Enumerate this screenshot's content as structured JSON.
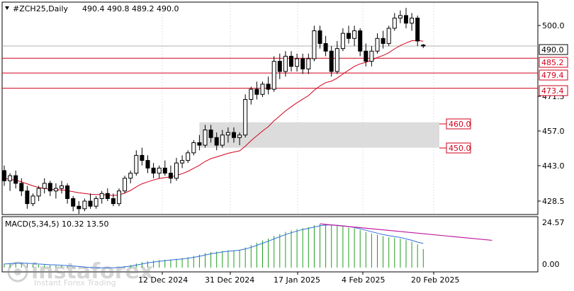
{
  "header": {
    "symbol": "#ZCH25,Daily",
    "ohlc": "490.4 490.8 489.2 490.0"
  },
  "price_axis": {
    "ticks": [
      "500.0",
      "471.5",
      "457.0",
      "443.0",
      "428.5"
    ],
    "current_price": "490.0",
    "level_labels": [
      "485.2",
      "479.4",
      "473.4"
    ],
    "zone_labels": [
      "460.0",
      "450.0"
    ]
  },
  "macd_axis": {
    "ticks": [
      "24.57",
      "0.00"
    ]
  },
  "date_axis": {
    "labels": [
      "12 Dec 2024",
      "31 Dec 2024",
      "17 Jan 2025",
      "4 Feb 2025",
      "20 Feb 2025"
    ]
  },
  "watermark": {
    "brand": "instaforex",
    "tagline": "Instant Forex Trading"
  },
  "colors": {
    "bull_body": "#ffffff",
    "bear_body": "#000000",
    "ma_line": "#d0021b",
    "levels": "#d0021b",
    "zone": "#d8d8d8",
    "macd_hist": "#1e9e1e",
    "macd_signal": "#2f6fde",
    "divergence": "#c01fa0"
  },
  "chart_data": [
    {
      "type": "candlestick",
      "title": "#ZCH25,Daily",
      "ylim": [
        424.0,
        507.0
      ],
      "x_labels": [
        "12 Dec 2024",
        "31 Dec 2024",
        "17 Jan 2025",
        "4 Feb 2025",
        "20 Feb 2025"
      ],
      "candles": [
        [
          441,
          443,
          435,
          437
        ],
        [
          437,
          440,
          433,
          439
        ],
        [
          439,
          441,
          434,
          436
        ],
        [
          436,
          438,
          431,
          433
        ],
        [
          433,
          435,
          426,
          428
        ],
        [
          428,
          432,
          427,
          431
        ],
        [
          431,
          435,
          429,
          434
        ],
        [
          434,
          438,
          432,
          436
        ],
        [
          436,
          437,
          431,
          433
        ],
        [
          433,
          436,
          430,
          434
        ],
        [
          434,
          437,
          432,
          435
        ],
        [
          435,
          436,
          428,
          430
        ],
        [
          430,
          431,
          425,
          427
        ],
        [
          427,
          429,
          424,
          426
        ],
        [
          426,
          430,
          425,
          429
        ],
        [
          429,
          432,
          426,
          427
        ],
        [
          427,
          431,
          426,
          430
        ],
        [
          430,
          433,
          428,
          432
        ],
        [
          432,
          434,
          429,
          430
        ],
        [
          430,
          432,
          427,
          428
        ],
        [
          428,
          434,
          427,
          433
        ],
        [
          433,
          439,
          432,
          438
        ],
        [
          438,
          441,
          436,
          440
        ],
        [
          440,
          449,
          439,
          447
        ],
        [
          447,
          450,
          443,
          445
        ],
        [
          445,
          447,
          440,
          442
        ],
        [
          442,
          444,
          438,
          440
        ],
        [
          440,
          443,
          438,
          442
        ],
        [
          442,
          445,
          439,
          440
        ],
        [
          440,
          443,
          436,
          438
        ],
        [
          438,
          446,
          437,
          444
        ],
        [
          444,
          447,
          442,
          445
        ],
        [
          445,
          449,
          444,
          448
        ],
        [
          448,
          453,
          447,
          452
        ],
        [
          452,
          455,
          449,
          451
        ],
        [
          451,
          459,
          450,
          457
        ],
        [
          457,
          459,
          452,
          454
        ],
        [
          454,
          456,
          449,
          451
        ],
        [
          451,
          457,
          450,
          455
        ],
        [
          455,
          458,
          452,
          456
        ],
        [
          456,
          458,
          452,
          454
        ],
        [
          454,
          456,
          451,
          455
        ],
        [
          455,
          471,
          454,
          469
        ],
        [
          469,
          474,
          467,
          473
        ],
        [
          473,
          476,
          469,
          471
        ],
        [
          471,
          476,
          470,
          475
        ],
        [
          475,
          478,
          471,
          473
        ],
        [
          473,
          486,
          472,
          484
        ],
        [
          484,
          487,
          477,
          480
        ],
        [
          480,
          488,
          478,
          486
        ],
        [
          486,
          488,
          480,
          482
        ],
        [
          482,
          487,
          480,
          485
        ],
        [
          485,
          487,
          479,
          481
        ],
        [
          481,
          487,
          479,
          485
        ],
        [
          485,
          498,
          484,
          496
        ],
        [
          496,
          498,
          489,
          491
        ],
        [
          491,
          494,
          486,
          488
        ],
        [
          488,
          490,
          478,
          480
        ],
        [
          480,
          492,
          479,
          489
        ],
        [
          489,
          497,
          488,
          495
        ],
        [
          495,
          498,
          491,
          493
        ],
        [
          493,
          498,
          490,
          496
        ],
        [
          496,
          497,
          486,
          488
        ],
        [
          488,
          491,
          482,
          484
        ],
        [
          484,
          490,
          482,
          488
        ],
        [
          488,
          495,
          487,
          493
        ],
        [
          493,
          496,
          489,
          491
        ],
        [
          491,
          498,
          490,
          497
        ],
        [
          497,
          503,
          496,
          501
        ],
        [
          501,
          504,
          499,
          502
        ],
        [
          502,
          505,
          497,
          499
        ],
        [
          499,
          503,
          496,
          501
        ],
        [
          501,
          502,
          490,
          492
        ],
        [
          490.4,
          490.8,
          489.2,
          490.0
        ]
      ],
      "moving_average": [
        438,
        437.6,
        437.2,
        436.6,
        435.8,
        435,
        434.4,
        434,
        433.7,
        433.5,
        433.4,
        433.1,
        432.7,
        432.3,
        432,
        431.7,
        431.6,
        431.6,
        431.4,
        431.2,
        431.4,
        432.2,
        433.2,
        434.6,
        435.8,
        436.6,
        437.3,
        437.9,
        438.3,
        438.5,
        439.1,
        439.8,
        440.7,
        441.9,
        443.1,
        444.6,
        445.7,
        446.4,
        447.1,
        447.8,
        448.3,
        448.8,
        450.6,
        452.8,
        454.7,
        456.6,
        458.3,
        460.6,
        462.5,
        464.5,
        466.1,
        467.7,
        469.1,
        470.5,
        472.6,
        474.3,
        475.6,
        476.2,
        477.4,
        479,
        480.5,
        482,
        483,
        483.6,
        484.4,
        485.5,
        486.3,
        487.4,
        488.9,
        490.2,
        491.2,
        492.1,
        492.2,
        491.9
      ],
      "levels": [
        485.2,
        479.4,
        473.4
      ],
      "zone": [
        450.0,
        460.0
      ]
    },
    {
      "type": "bar",
      "title": "MACD(5,34,5) 10.32 13.50",
      "ylim": [
        -2.0,
        28.0
      ],
      "histogram": [
        2.2,
        2.5,
        2.7,
        2.6,
        2.2,
        1.8,
        1.6,
        1.5,
        1.3,
        1.2,
        1.1,
        0.8,
        0.4,
        0.1,
        -0.1,
        -0.2,
        -0.3,
        -0.2,
        -0.1,
        0.0,
        0.3,
        0.8,
        1.4,
        2.3,
        3.1,
        3.6,
        3.9,
        4.2,
        4.4,
        4.5,
        4.9,
        5.3,
        5.8,
        6.5,
        7.2,
        8.1,
        8.6,
        8.9,
        9.3,
        9.6,
        9.7,
        9.9,
        11.2,
        12.6,
        13.9,
        15.1,
        16.2,
        17.7,
        18.7,
        19.9,
        20.7,
        21.5,
        22.0,
        22.6,
        23.6,
        24.1,
        24.3,
        23.9,
        23.4,
        22.9,
        22.3,
        21.8,
        20.9,
        19.8,
        19.0,
        18.3,
        17.5,
        16.9,
        16.6,
        16.1,
        15.3,
        14.4,
        12.9,
        10.32
      ],
      "signal": [
        2.0,
        2.2,
        2.4,
        2.5,
        2.4,
        2.2,
        2.0,
        1.8,
        1.6,
        1.5,
        1.3,
        1.1,
        0.9,
        0.6,
        0.3,
        0.1,
        -0.1,
        -0.1,
        -0.1,
        -0.1,
        0.1,
        0.4,
        0.8,
        1.4,
        2.0,
        2.6,
        3.1,
        3.5,
        3.9,
        4.2,
        4.5,
        4.8,
        5.2,
        5.7,
        6.3,
        7.0,
        7.7,
        8.2,
        8.7,
        9.1,
        9.4,
        9.7,
        10.4,
        11.3,
        12.4,
        13.6,
        14.7,
        16.0,
        17.2,
        18.4,
        19.4,
        20.4,
        21.2,
        21.9,
        22.6,
        23.3,
        23.7,
        23.8,
        23.6,
        23.3,
        22.9,
        22.3,
        21.6,
        20.8,
        20.0,
        19.2,
        18.4,
        17.8,
        17.3,
        16.8,
        16.0,
        15.2,
        14.2,
        13.5
      ],
      "divergence_line": [
        [
          55,
          24.4
        ],
        [
          85,
          15.2
        ]
      ]
    }
  ]
}
